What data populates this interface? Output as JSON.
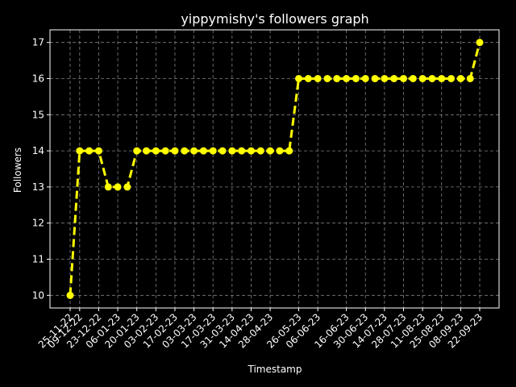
{
  "chart_data": {
    "type": "line",
    "title": "yippymishy's followers graph",
    "xlabel": "Timestamp",
    "ylabel": "Followers",
    "ylim": [
      9.65,
      17.35
    ],
    "yticks": [
      10,
      11,
      12,
      13,
      14,
      15,
      16,
      17
    ],
    "grid": true,
    "line_color": "#ffff00",
    "background": "#000000",
    "text_color": "#ffffff",
    "grid_color": "#808080",
    "series": [
      {
        "values": [
          10,
          14,
          14,
          14,
          13,
          13,
          13,
          14,
          14,
          14,
          14,
          14,
          14,
          14,
          14,
          14,
          14,
          14,
          14,
          14,
          14,
          14,
          14,
          14,
          16,
          16,
          16,
          16,
          16,
          16,
          16,
          16,
          16,
          16,
          16,
          16,
          16,
          16,
          16,
          16,
          16,
          16,
          16,
          17
        ]
      }
    ],
    "x_tick_labels": [
      "25-11-22",
      "09-12-22",
      "23-12-22",
      "06-01-23",
      "20-01-23",
      "03-02-23",
      "17-02-23",
      "03-03-23",
      "17-03-23",
      "31-03-23",
      "14-04-23",
      "28-04-23",
      "26-05-23",
      "06-06-23",
      "16-06-23",
      "30-06-23",
      "14-07-23",
      "28-07-23",
      "11-08-23",
      "25-08-23",
      "08-09-23",
      "22-09-23"
    ],
    "x_tick_positions": [
      0,
      1,
      3,
      5,
      7,
      9,
      11,
      13,
      15,
      17,
      19,
      21,
      24,
      26,
      29,
      31,
      33,
      35,
      37,
      39,
      41,
      43
    ]
  }
}
